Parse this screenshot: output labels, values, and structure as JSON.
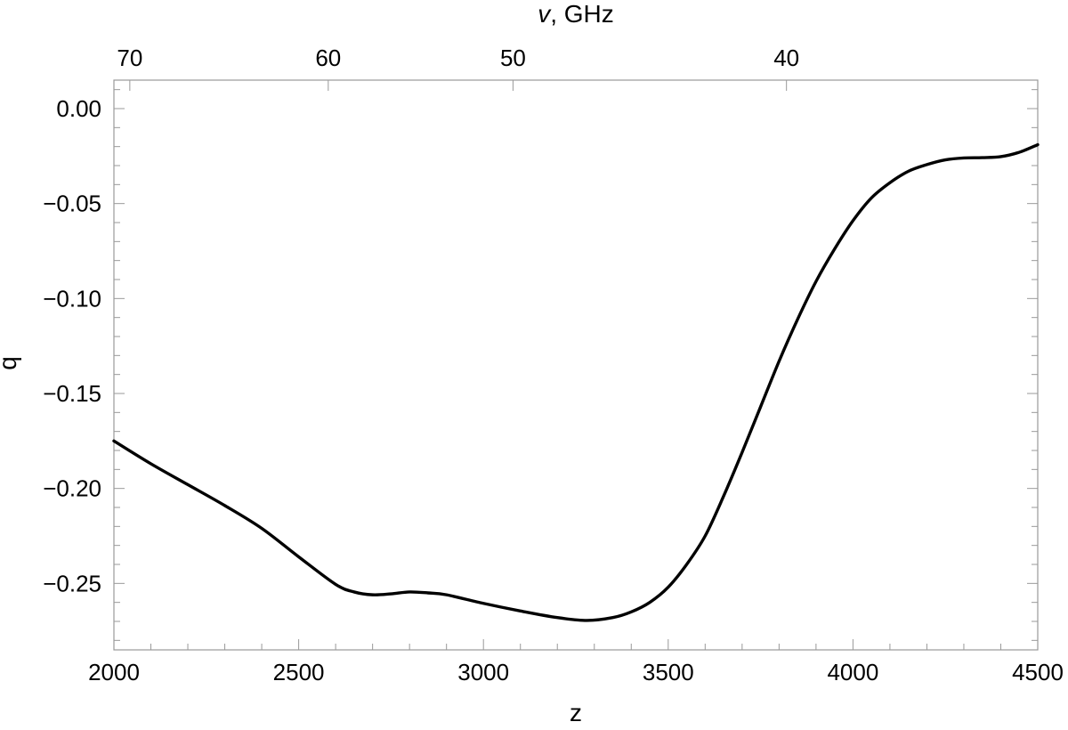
{
  "chart_data": {
    "type": "line",
    "title": "",
    "xlabel": "z",
    "ylabel": "q",
    "top_axis_label": {
      "symbol": "v",
      "rest": ", GHz"
    },
    "xlim": [
      2000,
      4500
    ],
    "ylim": [
      -0.285,
      0.015
    ],
    "x_ticks": [
      2000,
      2500,
      3000,
      3500,
      4000,
      4500
    ],
    "x_tick_labels": [
      "2000",
      "2500",
      "3000",
      "3500",
      "4000",
      "4500"
    ],
    "y_ticks": [
      0.0,
      -0.05,
      -0.1,
      -0.15,
      -0.2,
      -0.25
    ],
    "y_tick_labels": [
      "0.00",
      "−0.05",
      "−0.10",
      "−0.15",
      "−0.20",
      "−0.25"
    ],
    "top_ticks": [
      {
        "label": "70",
        "z": 2043
      },
      {
        "label": "60",
        "z": 2580
      },
      {
        "label": "50",
        "z": 3080
      },
      {
        "label": "40",
        "z": 3820
      }
    ],
    "grid": false,
    "series": [
      {
        "color": "#000000",
        "x": [
          2000,
          2100,
          2200,
          2300,
          2400,
          2500,
          2600,
          2650,
          2700,
          2750,
          2800,
          2850,
          2900,
          3000,
          3100,
          3200,
          3280,
          3350,
          3400,
          3450,
          3500,
          3550,
          3600,
          3650,
          3700,
          3750,
          3800,
          3850,
          3900,
          3950,
          4000,
          4050,
          4100,
          4150,
          4200,
          4250,
          4300,
          4350,
          4400,
          4450,
          4500
        ],
        "y": [
          -0.175,
          -0.187,
          -0.198,
          -0.209,
          -0.221,
          -0.236,
          -0.2505,
          -0.2545,
          -0.256,
          -0.2555,
          -0.2545,
          -0.255,
          -0.256,
          -0.2605,
          -0.2645,
          -0.268,
          -0.2695,
          -0.268,
          -0.265,
          -0.26,
          -0.252,
          -0.24,
          -0.225,
          -0.204,
          -0.181,
          -0.157,
          -0.133,
          -0.111,
          -0.091,
          -0.074,
          -0.059,
          -0.047,
          -0.039,
          -0.033,
          -0.0295,
          -0.027,
          -0.026,
          -0.0258,
          -0.0253,
          -0.023,
          -0.019
        ]
      }
    ]
  }
}
